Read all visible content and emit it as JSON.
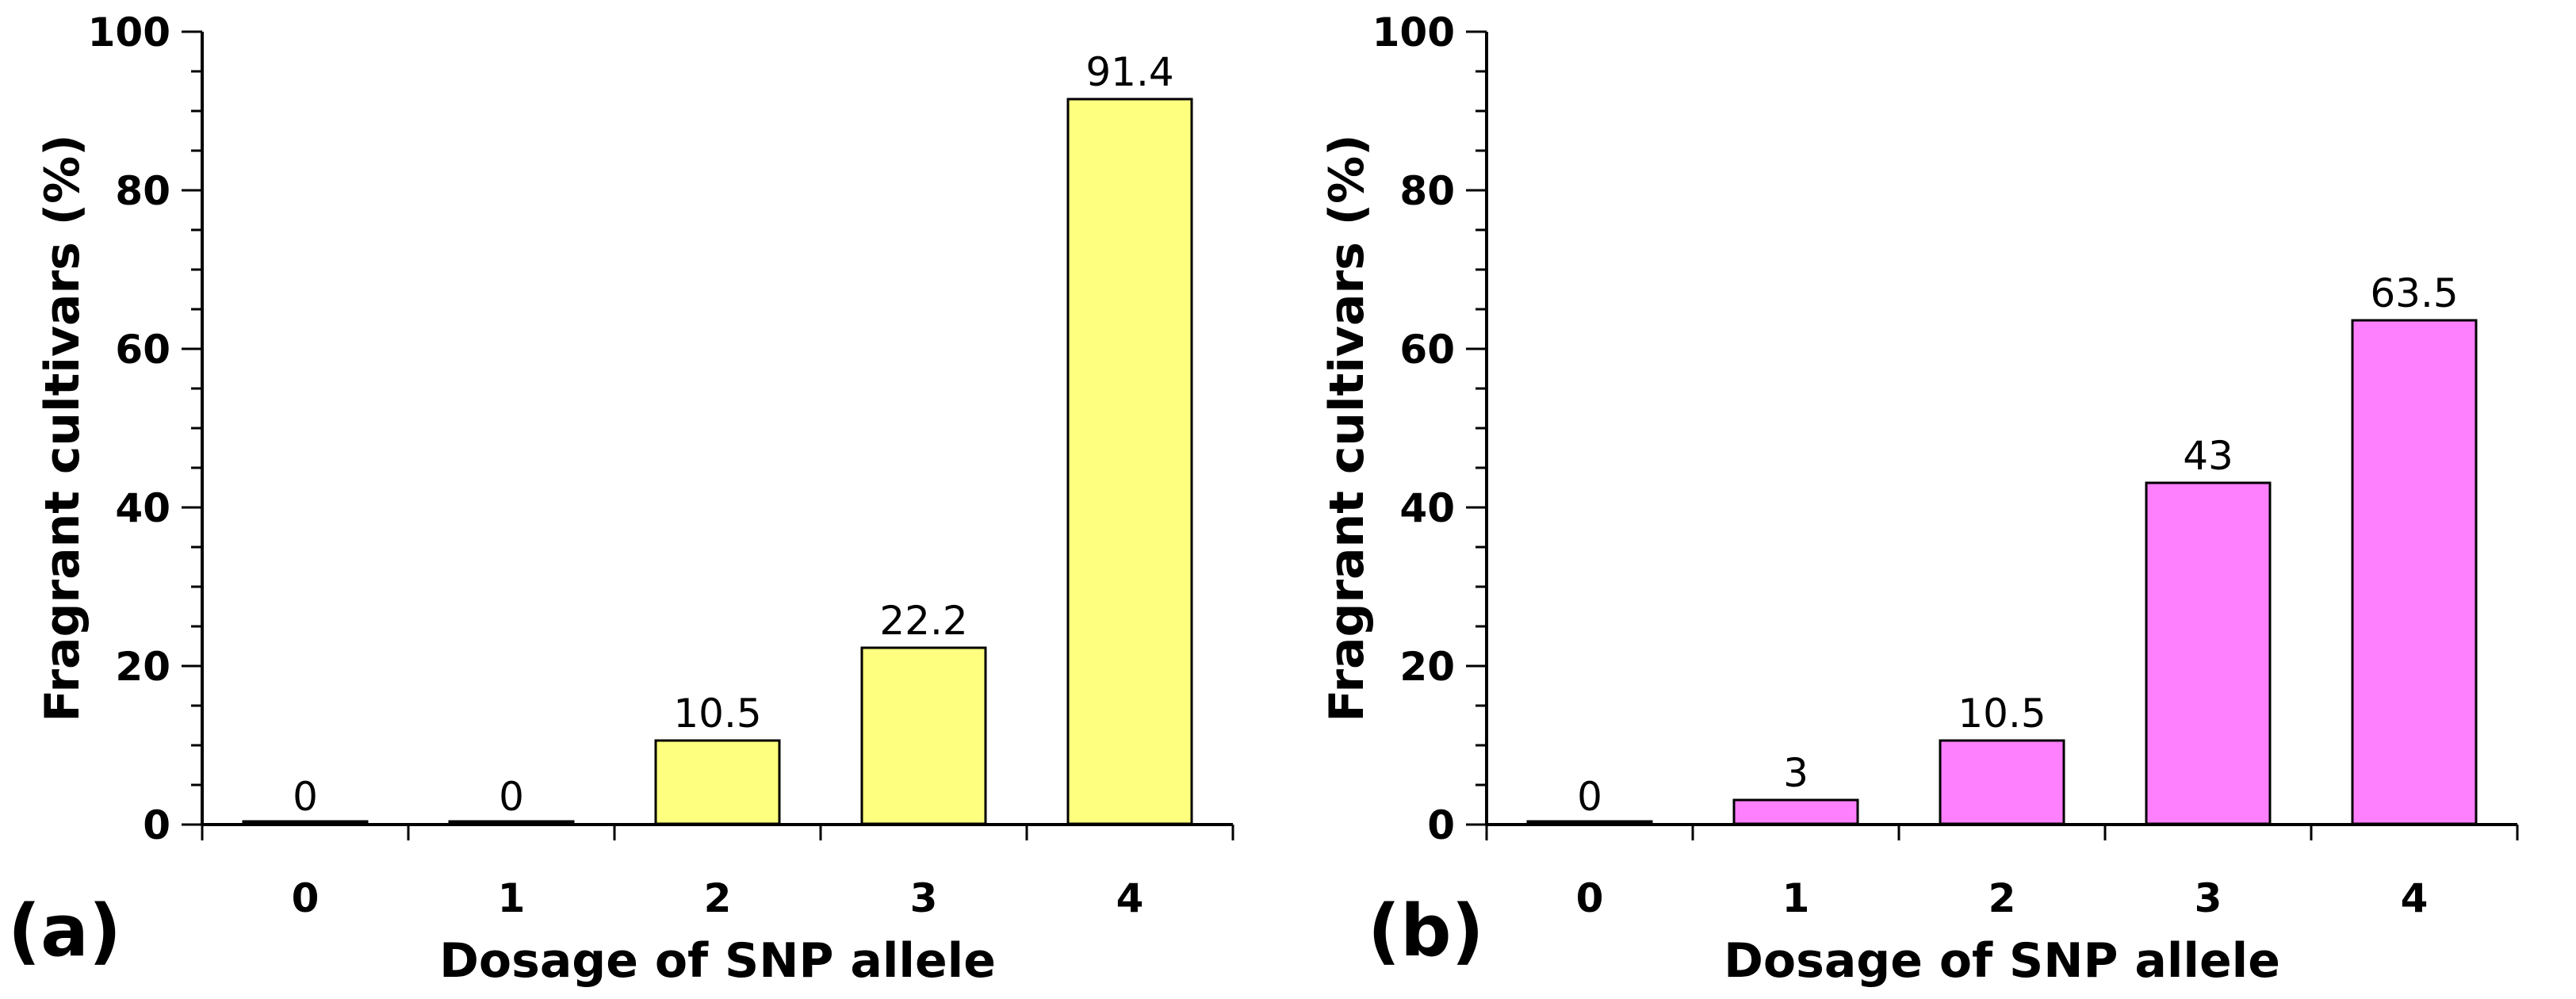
{
  "chart_data": [
    {
      "type": "bar",
      "panel_label": "(a)",
      "categories": [
        "0",
        "1",
        "2",
        "3",
        "4"
      ],
      "values": [
        0,
        0,
        10.5,
        22.2,
        91.4
      ],
      "data_labels": [
        "0",
        "0",
        "10.5",
        "22.2",
        "91.4"
      ],
      "bar_color": "#ffff7f",
      "xlabel": "Dosage of SNP allele",
      "ylabel": "Fragrant cultivars (%)",
      "ylim": [
        0,
        100
      ],
      "yticks": [
        "0",
        "20",
        "40",
        "60",
        "80",
        "100"
      ],
      "grid": false,
      "legend": false
    },
    {
      "type": "bar",
      "panel_label": "(b)",
      "categories": [
        "0",
        "1",
        "2",
        "3",
        "4"
      ],
      "values": [
        0,
        3,
        10.5,
        43,
        63.5
      ],
      "data_labels": [
        "0",
        "3",
        "10.5",
        "43",
        "63.5"
      ],
      "bar_color": "#ff80ff",
      "xlabel": "Dosage of SNP allele",
      "ylabel": "Fragrant cultivars (%)",
      "ylim": [
        0,
        100
      ],
      "yticks": [
        "0",
        "20",
        "40",
        "60",
        "80",
        "100"
      ],
      "grid": false,
      "legend": false
    }
  ]
}
